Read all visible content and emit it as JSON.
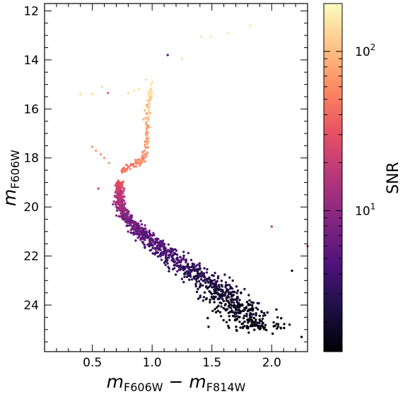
{
  "chart_data": {
    "type": "scatter",
    "title": "",
    "x_label": {
      "base": "m",
      "sub1": "F606W",
      "minus": " − ",
      "base2": "m",
      "sub2": "F814W"
    },
    "y_label": {
      "base": "m",
      "sub": "F606W"
    },
    "xlim": [
      0.1,
      2.3
    ],
    "ylim": [
      25.9,
      11.7
    ],
    "y_inverted": true,
    "x_ticks": [
      0.5,
      1.0,
      1.5,
      2.0
    ],
    "x_tick_labels": [
      "0.5",
      "1.0",
      "1.5",
      "2.0"
    ],
    "y_ticks": [
      12,
      14,
      16,
      18,
      20,
      22,
      24
    ],
    "y_tick_labels": [
      "12",
      "14",
      "16",
      "18",
      "20",
      "22",
      "24"
    ],
    "grid": false,
    "colorbar": {
      "label": "SNR",
      "scale": "log",
      "range": [
        1.3,
        200
      ],
      "tick_labels": [
        {
          "value": 10,
          "base": "10",
          "exp": "1"
        },
        {
          "value": 100,
          "base": "10",
          "exp": "2"
        }
      ],
      "colormap": "magma",
      "colormap_stops": [
        "#000004",
        "#1c1044",
        "#4f127b",
        "#812581",
        "#b5367a",
        "#e55064",
        "#fb8761",
        "#fec287",
        "#fcfdbf"
      ]
    },
    "main_sequence_ridge": [
      {
        "x": 0.72,
        "y": 19.0,
        "snr": 30
      },
      {
        "x": 0.72,
        "y": 19.5,
        "snr": 18
      },
      {
        "x": 0.74,
        "y": 20.0,
        "snr": 12
      },
      {
        "x": 0.8,
        "y": 20.5,
        "snr": 8
      },
      {
        "x": 0.9,
        "y": 21.0,
        "snr": 6
      },
      {
        "x": 1.02,
        "y": 21.5,
        "snr": 5
      },
      {
        "x": 1.15,
        "y": 22.0,
        "snr": 4
      },
      {
        "x": 1.3,
        "y": 22.5,
        "snr": 3.2
      },
      {
        "x": 1.45,
        "y": 23.0,
        "snr": 2.5
      },
      {
        "x": 1.57,
        "y": 23.5,
        "snr": 2.0
      },
      {
        "x": 1.68,
        "y": 24.0,
        "snr": 1.7
      },
      {
        "x": 1.78,
        "y": 24.5,
        "snr": 1.5
      },
      {
        "x": 1.88,
        "y": 25.0,
        "snr": 1.4
      }
    ],
    "subgiant_branch": [
      {
        "x": 0.75,
        "y": 18.6,
        "snr": 45
      },
      {
        "x": 0.8,
        "y": 18.35,
        "snr": 50
      },
      {
        "x": 0.88,
        "y": 18.2,
        "snr": 55
      },
      {
        "x": 0.94,
        "y": 17.8,
        "snr": 60
      }
    ],
    "red_giant_branch": [
      {
        "x": 0.96,
        "y": 17.5,
        "snr": 70
      },
      {
        "x": 0.96,
        "y": 17.0,
        "snr": 80
      },
      {
        "x": 0.96,
        "y": 16.5,
        "snr": 95
      },
      {
        "x": 0.97,
        "y": 16.0,
        "snr": 110
      },
      {
        "x": 0.98,
        "y": 15.5,
        "snr": 130
      },
      {
        "x": 0.99,
        "y": 15.0,
        "snr": 150
      }
    ],
    "outliers": [
      {
        "x": 0.4,
        "y": 15.4,
        "snr": 140
      },
      {
        "x": 0.5,
        "y": 15.4,
        "snr": 140
      },
      {
        "x": 0.58,
        "y": 15.1,
        "snr": 140
      },
      {
        "x": 0.63,
        "y": 15.35,
        "snr": 40
      },
      {
        "x": 0.8,
        "y": 15.35,
        "snr": 150
      },
      {
        "x": 0.85,
        "y": 15.25,
        "snr": 150
      },
      {
        "x": 0.89,
        "y": 15.2,
        "snr": 150
      },
      {
        "x": 0.95,
        "y": 14.8,
        "snr": 150
      },
      {
        "x": 1.0,
        "y": 14.9,
        "snr": 150
      },
      {
        "x": 1.13,
        "y": 13.8,
        "snr": 6
      },
      {
        "x": 1.25,
        "y": 13.95,
        "snr": 150
      },
      {
        "x": 1.41,
        "y": 13.05,
        "snr": 160
      },
      {
        "x": 1.49,
        "y": 13.05,
        "snr": 160
      },
      {
        "x": 1.64,
        "y": 12.9,
        "snr": 160
      },
      {
        "x": 1.82,
        "y": 12.6,
        "snr": 160
      },
      {
        "x": 0.5,
        "y": 17.55,
        "snr": 70
      },
      {
        "x": 0.53,
        "y": 17.7,
        "snr": 70
      },
      {
        "x": 0.57,
        "y": 17.85,
        "snr": 70
      },
      {
        "x": 0.6,
        "y": 18.0,
        "snr": 70
      },
      {
        "x": 0.64,
        "y": 18.2,
        "snr": 70
      },
      {
        "x": 0.55,
        "y": 19.25,
        "snr": 30
      },
      {
        "x": 2.0,
        "y": 20.8,
        "snr": 20
      },
      {
        "x": 2.3,
        "y": 21.6,
        "snr": 20
      },
      {
        "x": 2.17,
        "y": 22.6,
        "snr": 1.5
      },
      {
        "x": 2.05,
        "y": 24.5,
        "snr": 1.4
      },
      {
        "x": 2.15,
        "y": 24.8,
        "snr": 1.4
      },
      {
        "x": 2.25,
        "y": 25.3,
        "snr": 1.4
      }
    ]
  }
}
